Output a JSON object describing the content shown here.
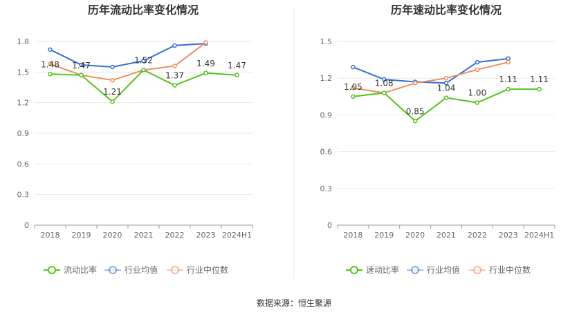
{
  "chart_data": [
    {
      "type": "line",
      "title": "历年流动比率变化情况",
      "categories": [
        "2018",
        "2019",
        "2020",
        "2021",
        "2022",
        "2023",
        "2024H1"
      ],
      "ylim": [
        0,
        1.8
      ],
      "yticks": [
        "0",
        "0.3",
        "0.6",
        "0.9",
        "1.2",
        "1.5",
        "1.8"
      ],
      "grid": true,
      "legend_position": "bottom",
      "series": [
        {
          "name": "流动比率",
          "color": "#52c41a",
          "values": [
            1.48,
            1.47,
            1.21,
            1.52,
            1.37,
            1.49,
            1.47
          ],
          "labels": [
            "1.48",
            "1.47",
            "1.21",
            "1.52",
            "1.37",
            "1.49",
            "1.47"
          ]
        },
        {
          "name": "行业均值",
          "color": "#3370d6",
          "values": [
            1.72,
            1.57,
            1.55,
            1.61,
            1.76,
            1.78,
            null
          ]
        },
        {
          "name": "行业中位数",
          "color": "#f08c5a",
          "values": [
            1.58,
            1.47,
            1.42,
            1.52,
            1.56,
            1.79,
            null
          ]
        }
      ]
    },
    {
      "type": "line",
      "title": "历年速动比率变化情况",
      "categories": [
        "2018",
        "2019",
        "2020",
        "2021",
        "2022",
        "2023",
        "2024H1"
      ],
      "ylim": [
        0,
        1.5
      ],
      "yticks": [
        "0",
        "0.3",
        "0.6",
        "0.9",
        "1.2",
        "1.5"
      ],
      "grid": true,
      "legend_position": "bottom",
      "series": [
        {
          "name": "速动比率",
          "color": "#52c41a",
          "values": [
            1.05,
            1.08,
            0.85,
            1.04,
            1.0,
            1.11,
            1.11
          ],
          "labels": [
            "1.05",
            "1.08",
            "0.85",
            "1.04",
            "1.00",
            "1.11",
            "1.11"
          ]
        },
        {
          "name": "行业均值",
          "color": "#3370d6",
          "values": [
            1.29,
            1.19,
            1.17,
            1.16,
            1.33,
            1.36,
            null
          ]
        },
        {
          "name": "行业中位数",
          "color": "#f08c5a",
          "values": [
            1.12,
            1.08,
            1.16,
            1.2,
            1.27,
            1.33,
            null
          ]
        }
      ]
    }
  ],
  "source": "数据来源：恒生聚源"
}
